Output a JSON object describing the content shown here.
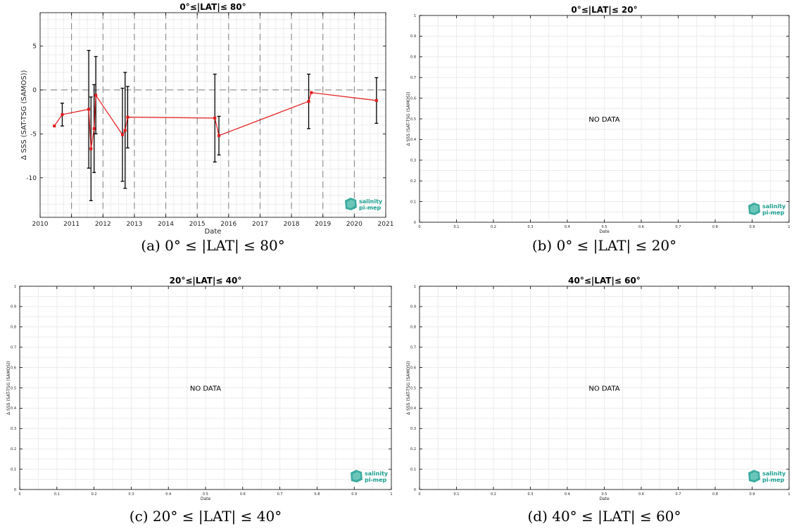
{
  "figure": {
    "logo": {
      "line1": "salinity",
      "line2": "pi-mep",
      "color": "#1a9e8f"
    },
    "colors": {
      "series": "#e41a1c",
      "errorbar": "#000000",
      "zero_line": "#7f7f7f",
      "decade_line": "#7f7f7f",
      "grid": "#ececec",
      "axis": "#000000"
    }
  },
  "chart_data": [
    {
      "type": "line",
      "panel": "a",
      "title": "0°≤|LAT|≤ 80°",
      "caption": "(a) 0° ≤ |LAT| ≤ 80°",
      "xlabel": "Date",
      "ylabel": "Δ SSS (SAT-TSG (SAMOS))",
      "xlim": [
        "2010-01-01",
        "2021-01-01"
      ],
      "ylim": [
        -14.5,
        8.8
      ],
      "xticks": [
        "2010",
        "2011",
        "2012",
        "2013",
        "2014",
        "2015",
        "2016",
        "2017",
        "2018",
        "2019",
        "2020",
        "2021"
      ],
      "yticks": [
        5,
        0,
        -5,
        -10
      ],
      "ytick_labels": [
        "5",
        "0",
        "-5",
        "-10"
      ],
      "grid": true,
      "zero_line": 0,
      "vertical_dashed_years": [
        "2011",
        "2012",
        "2013",
        "2014",
        "2015",
        "2016",
        "2017",
        "2018",
        "2019",
        "2020"
      ],
      "series": [
        {
          "x": [
            "2010-06-15",
            "2010-09-15",
            "2011-07-20",
            "2011-08-15",
            "2011-09-20",
            "2011-10-10",
            "2012-08-15",
            "2012-09-15",
            "2012-10-15",
            "2015-07-25",
            "2015-09-10",
            "2018-07-20",
            "2018-08-20",
            "2020-09-15"
          ],
          "y": [
            -4.1,
            -2.8,
            -2.2,
            -6.7,
            -4.4,
            -0.6,
            -5.1,
            -4.6,
            -3.1,
            -3.2,
            -5.2,
            -1.3,
            -0.3,
            -1.2
          ],
          "err": [
            0,
            1.3,
            6.7,
            5.9,
            5.0,
            4.4,
            5.3,
            6.6,
            3.5,
            5.0,
            2.2,
            3.1,
            0,
            2.6
          ]
        }
      ]
    },
    {
      "type": "line",
      "panel": "b",
      "title": "0°≤|LAT|≤ 20°",
      "caption": "(b) 0° ≤ |LAT| ≤ 20°",
      "xlabel": "Date",
      "ylabel": "Δ SSS (SAT-TSG (SAMOS))",
      "xlim": [
        0,
        1
      ],
      "ylim": [
        0,
        1
      ],
      "xticks": [
        "0",
        "0.1",
        "0.2",
        "0.3",
        "0.4",
        "0.5",
        "0.6",
        "0.7",
        "0.8",
        "0.9",
        "1"
      ],
      "yticks": [
        "0",
        "0.1",
        "0.2",
        "0.3",
        "0.4",
        "0.5",
        "0.6",
        "0.7",
        "0.8",
        "0.9",
        "1"
      ],
      "grid": true,
      "annotation": "NO DATA"
    },
    {
      "type": "line",
      "panel": "c",
      "title": "20°≤|LAT|≤ 40°",
      "caption": "(c) 20° ≤ |LAT| ≤ 40°",
      "xlabel": "Date",
      "ylabel": "Δ SSS (SAT-TSG (SAMOS))",
      "xlim": [
        0,
        1
      ],
      "ylim": [
        0,
        1
      ],
      "xticks": [
        "0",
        "0.1",
        "0.2",
        "0.3",
        "0.4",
        "0.5",
        "0.6",
        "0.7",
        "0.8",
        "0.9",
        "1"
      ],
      "yticks": [
        "0",
        "0.1",
        "0.2",
        "0.3",
        "0.4",
        "0.5",
        "0.6",
        "0.7",
        "0.8",
        "0.9",
        "1"
      ],
      "grid": true,
      "annotation": "NO DATA"
    },
    {
      "type": "line",
      "panel": "d",
      "title": "40°≤|LAT|≤ 60°",
      "caption": "(d) 40° ≤ |LAT| ≤ 60°",
      "xlabel": "Date",
      "ylabel": "Δ SSS (SAT-TSG (SAMOS))",
      "xlim": [
        0,
        1
      ],
      "ylim": [
        0,
        1
      ],
      "xticks": [
        "0",
        "0.1",
        "0.2",
        "0.3",
        "0.4",
        "0.5",
        "0.6",
        "0.7",
        "0.8",
        "0.9",
        "1"
      ],
      "yticks": [
        "0",
        "0.1",
        "0.2",
        "0.3",
        "0.4",
        "0.5",
        "0.6",
        "0.7",
        "0.8",
        "0.9",
        "1"
      ],
      "grid": true,
      "annotation": "NO DATA"
    }
  ]
}
